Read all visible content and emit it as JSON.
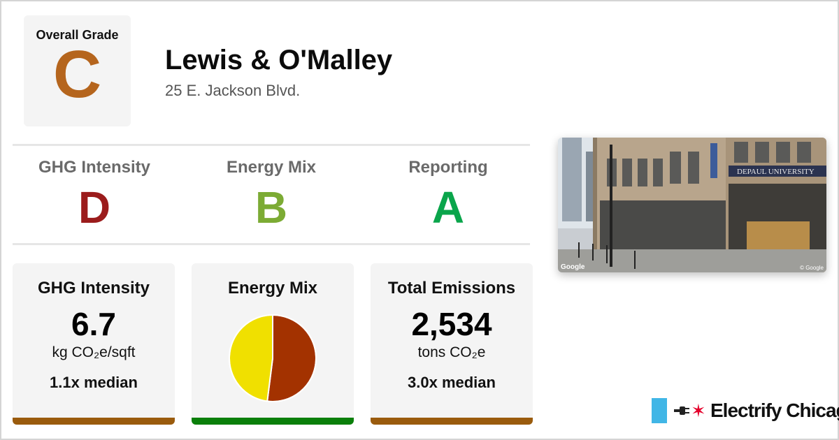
{
  "overall": {
    "label": "Overall Grade",
    "grade": "C",
    "color": "#b5651d"
  },
  "building": {
    "name": "Lewis & O'Malley",
    "address": "25 E. Jackson Blvd."
  },
  "sub_grades": [
    {
      "label": "GHG Intensity",
      "grade": "D",
      "color": "#9b1c1c"
    },
    {
      "label": "Energy Mix",
      "grade": "B",
      "color": "#7cab34"
    },
    {
      "label": "Reporting",
      "grade": "A",
      "color": "#0aa54b"
    }
  ],
  "cards": {
    "ghg": {
      "title": "GHG Intensity",
      "value": "6.7",
      "unit": "kg CO₂e/sqft",
      "median": "1.1x median",
      "bar_color": "#9a5b0d"
    },
    "mix": {
      "title": "Energy Mix",
      "bar_color": "#0a7f0a"
    },
    "emissions": {
      "title": "Total Emissions",
      "value": "2,534",
      "unit": "tons CO₂e",
      "median": "3.0x median",
      "bar_color": "#9a5b0d"
    }
  },
  "chart_data": {
    "type": "pie",
    "values": [
      52,
      48
    ],
    "colors": [
      "#a33200",
      "#f0e000"
    ],
    "start_angle_deg": 0
  },
  "photo": {
    "watermark": "Google",
    "copyright": "© Google",
    "sign": "DEPAUL UNIVERSITY"
  },
  "brand": {
    "name": "Electrify Chicago",
    "icons": [
      "chicago-flag-stripe",
      "plug-icon",
      "chicago-star-icon"
    ]
  }
}
